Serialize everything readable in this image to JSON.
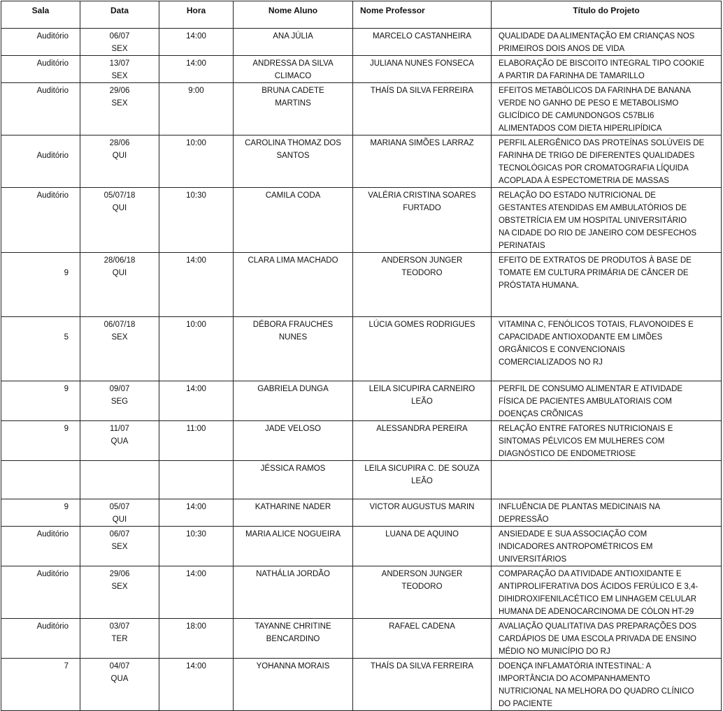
{
  "headers": {
    "sala": "Sala",
    "data": "Data",
    "hora": "Hora",
    "aluno": "Nome  Aluno",
    "professor": "Nome Professor",
    "titulo": "Título do Projeto"
  },
  "rows": [
    {
      "sala": "Auditório",
      "data": "06/07\nSEX",
      "hora": "14:00",
      "aluno": "ANA JÚLIA",
      "professor": "MARCELO CASTANHEIRA",
      "titulo": "QUALIDADE DA ALIMENTAÇÃO EM CRIANÇAS NOS\nPRIMEIROS DOIS ANOS DE VIDA"
    },
    {
      "sala": "Auditório",
      "data": "13/07\nSEX",
      "hora": "14:00",
      "aluno": "ANDRESSA DA SILVA\nCLIMACO",
      "professor": "JULIANA NUNES FONSECA",
      "titulo": "ELABORAÇÃO DE BISCOITO INTEGRAL TIPO COOKIE\nA PARTIR DA FARINHA DE TAMARILLO"
    },
    {
      "sala": "Auditório",
      "data": "29/06\nSEX",
      "hora": "9:00",
      "aluno": "BRUNA  CADETE\nMARTINS",
      "professor": "THAÍS DA SILVA FERREIRA",
      "titulo": "EFEITOS METABÓLICOS DA FARINHA DE BANANA\nVERDE NO GANHO DE PESO E METABOLISMO\nGLICÍDICO DE CAMUNDONGOS C57BLI6\nALIMENTADOS COM DIETA HIPERLIPÍDICA"
    },
    {
      "sala": "Auditório",
      "data": "28/06\nQUI",
      "hora": "10:00",
      "aluno": "CAROLINA THOMAZ DOS\nSANTOS",
      "professor": "MARIANA SIMÕES LARRAZ",
      "titulo": "PERFIL ALERGÊNICO DAS PROTEÍNAS SOLÚVEIS DE\nFARINHA DE TRIGO DE DIFERENTES QUALIDADES\nTECNOLÓGICAS POR CROMATOGRAFIA LÍQUIDA\nACOPLADA À ESPECTOMETRIA DE MASSAS"
    },
    {
      "sala": "Auditório",
      "data": "05/07/18\nQUI",
      "hora": "10:30",
      "aluno": "CAMILA CODA",
      "professor": "VALÉRIA CRISTINA SOARES\nFURTADO",
      "titulo": "RELAÇÃO DO ESTADO NUTRICIONAL DE\nGESTANTES ATENDIDAS EM AMBULATÓRIOS DE\nOBSTETRÍCIA EM UM HOSPITAL UNIVERSITÁRIO\nNA CIDADE DO RIO DE JANEIRO COM DESFECHOS\nPERINATAIS"
    },
    {
      "sala": "9",
      "data": "28/06/18\nQUI",
      "hora": "14:00",
      "aluno": "CLARA LIMA MACHADO",
      "professor": "ANDERSON JUNGER\nTEODORO",
      "titulo": "EFEITO DE EXTRATOS DE PRODUTOS À BASE DE\nTOMATE EM CULTURA PRIMÁRIA DE CÂNCER DE\nPRÓSTATA HUMANA."
    },
    {
      "sala": "5",
      "data": "06/07/18\nSEX",
      "hora": "10:00",
      "aluno": "DÉBORA FRAUCHES\nNUNES",
      "professor": "LÚCIA GOMES RODRIGUES",
      "titulo": "VITAMINA C, FENÓLICOS TOTAIS, FLAVONOIDES E\nCAPACIDADE ANTIOXODANTE EM LIMÕES\nORGÂNICOS E CONVENCIONAIS\nCOMERCIALIZADOS NO RJ"
    },
    {
      "sala": "9",
      "data": "09/07\nSEG",
      "hora": "14:00",
      "aluno": "GABRIELA DUNGA",
      "professor": "LEILA SICUPIRA CARNEIRO\nLEÃO",
      "titulo": "PERFIL DE CONSUMO ALIMENTAR E ATIVIDADE\nFÍSICA DE PACIENTES AMBULATORIAIS COM\nDOENÇAS CRÕNICAS"
    },
    {
      "sala": "9",
      "data": "11/07\nQUA",
      "hora": "11:00",
      "aluno": "JADE VELOSO",
      "professor": "ALESSANDRA PEREIRA",
      "titulo": "RELAÇÃO ENTRE FATORES NUTRICIONAIS E\nSINTOMAS PÉLVICOS EM MULHERES COM\nDIAGNÓSTICO DE ENDOMETRIOSE"
    },
    {
      "sala": "",
      "data": "",
      "hora": "",
      "aluno": "JÉSSICA RAMOS",
      "professor": "LEILA SICUPIRA C. DE SOUZA\nLEÃO",
      "titulo": ""
    },
    {
      "sala": "9",
      "data": "05/07\nQUI",
      "hora": "14:00",
      "aluno": "KATHARINE NADER",
      "professor": "VICTOR AUGUSTUS MARIN",
      "titulo": "INFLUÊNCIA DE PLANTAS MEDICINAIS NA\nDEPRESSÃO"
    },
    {
      "sala": "Auditório",
      "data": "06/07\nSEX",
      "hora": "10:30",
      "aluno": "MARIA ALICE NOGUEIRA",
      "professor": "LUANA DE AQUINO",
      "titulo": "ANSIEDADE E SUA ASSOCIAÇÃO COM\nINDICADORES ANTROPOMÉTRICOS EM\nUNIVERSITÁRIOS"
    },
    {
      "sala": "Auditório",
      "data": "29/06\nSEX",
      "hora": "14:00",
      "aluno": "NATHÁLIA JORDÃO",
      "professor": "ANDERSON JUNGER\nTEODORO",
      "titulo": "COMPARAÇÃO DA ATIVIDADE ANTIOXIDANTE E\nANTIPROLIFERATIVA DOS ÁCIDOS FERÚLICO E 3,4-\nDIHIDROXIFENILACÉTICO EM LINHAGEM CELULAR\nHUMANA DE ADENOCARCINOMA DE CÓLON HT-29"
    },
    {
      "sala": "Auditório",
      "data": "03/07\nTER",
      "hora": "18:00",
      "aluno": "TAYANNE CHRITINE\nBENCARDINO",
      "professor": "RAFAEL CADENA",
      "titulo": "AVALIAÇÃO QUALITATIVA DAS PREPARAÇÕES DOS\nCARDÁPIOS DE UMA ESCOLA PRIVADA DE ENSINO\nMÉDIO NO MUNICÍPIO DO RJ"
    },
    {
      "sala": "7",
      "data": "04/07\nQUA",
      "hora": "14:00",
      "aluno": "YOHANNA MORAIS",
      "professor": "THAÍS DA SILVA FERREIRA",
      "titulo": "DOENÇA INFLAMATÓRIA INTESTINAL: A\nIMPORTÂNCIA DO ACOMPANHAMENTO\nNUTRICIONAL NA MELHORA DO QUADRO CLÍNICO\nDO PACIENTE"
    }
  ]
}
